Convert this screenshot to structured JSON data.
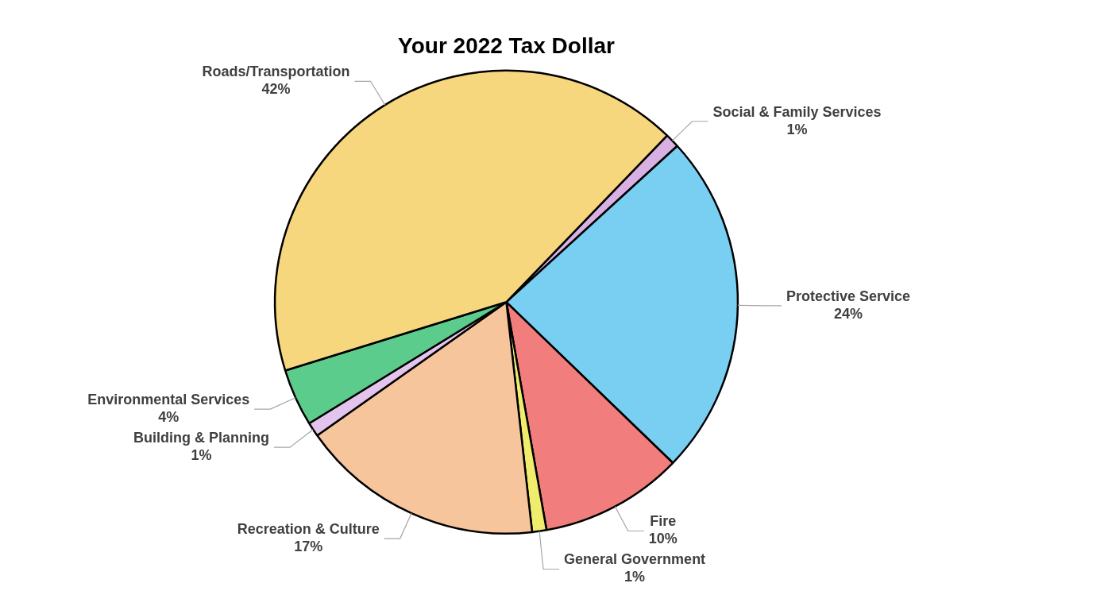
{
  "chart_data": {
    "type": "pie",
    "title": "Your 2022 Tax Dollar",
    "categories": [
      "Social & Family Services",
      "Protective Service",
      "Fire",
      "General Government",
      "Recreation & Culture",
      "Building & Planning",
      "Environmental Services",
      "Roads/Transportation"
    ],
    "values": [
      1,
      24,
      10,
      1,
      17,
      1,
      4,
      42
    ],
    "value_labels": [
      "1%",
      "24%",
      "10%",
      "1%",
      "17%",
      "1%",
      "4%",
      "42%"
    ],
    "colors": [
      "#d9b0e3",
      "#78cff2",
      "#f27d7d",
      "#f0ec6e",
      "#f7c59c",
      "#e3c4ec",
      "#5ccc8c",
      "#f7d77e"
    ],
    "data_labels": true
  }
}
